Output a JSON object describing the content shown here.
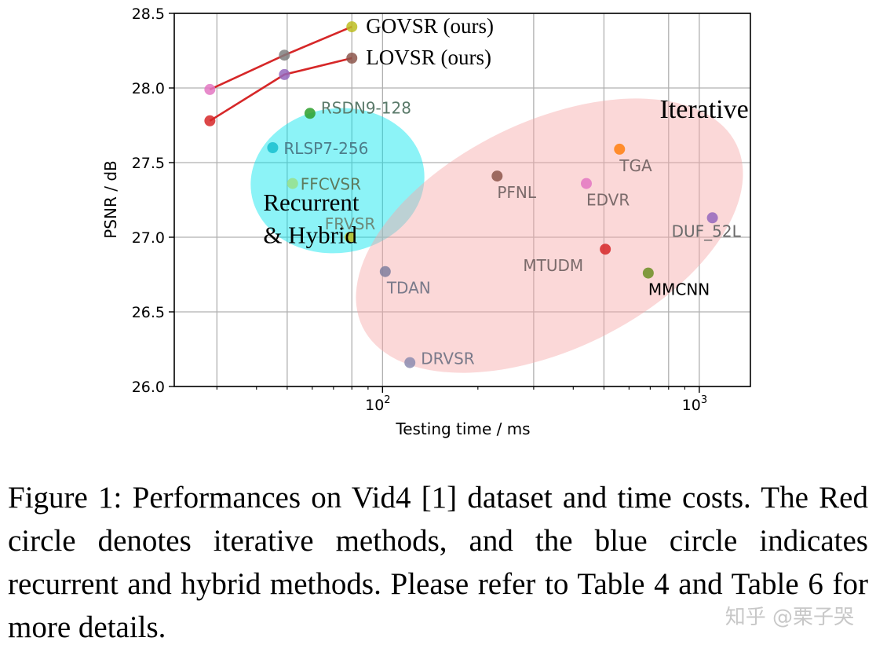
{
  "chart_data": {
    "type": "scatter",
    "xlabel": "Testing time / ms",
    "ylabel": "PSNR / dB",
    "xscale": "log",
    "xlim": [
      22,
      1450
    ],
    "ylim": [
      26.0,
      28.5
    ],
    "yticks": [
      "26.0",
      "26.5",
      "27.0",
      "27.5",
      "28.0",
      "28.5"
    ],
    "xticks": [
      {
        "base": "10",
        "exp": "2",
        "value": 100
      },
      {
        "base": "10",
        "exp": "3",
        "value": 1000
      }
    ],
    "grid": true,
    "points": [
      {
        "label": "GOVSR (ours)",
        "x": 80,
        "y": 28.41,
        "color": "#bcbd22",
        "label_style": "serif"
      },
      {
        "label": "LOVSR (ours)",
        "x": 80,
        "y": 28.2,
        "color": "#8c564b",
        "label_style": "serif"
      },
      {
        "label": "",
        "x": 28.5,
        "y": 27.99,
        "color": "#e377c2"
      },
      {
        "label": "",
        "x": 49,
        "y": 28.22,
        "color": "#7f7f7f"
      },
      {
        "label": "",
        "x": 28.5,
        "y": 27.78,
        "color": "#d62728"
      },
      {
        "label": "",
        "x": 49,
        "y": 28.09,
        "color": "#9467bd"
      },
      {
        "label": "RSDN9-128",
        "x": 59,
        "y": 27.83,
        "color": "#2ca02c"
      },
      {
        "label": "RLSP7-256",
        "x": 45,
        "y": 27.6,
        "color": "#17becf"
      },
      {
        "label": "FFCVSR",
        "x": 52,
        "y": 27.36,
        "color": "#98df8a"
      },
      {
        "label": "FRVSR",
        "x": 79,
        "y": 27.0,
        "color": "#bcbd22"
      },
      {
        "label": "TDAN",
        "x": 102,
        "y": 26.77,
        "color": "#7f7f9f"
      },
      {
        "label": "DRVSR",
        "x": 122,
        "y": 26.16,
        "color": "#8c8cb0"
      },
      {
        "label": "PFNL",
        "x": 230,
        "y": 27.41,
        "color": "#8c564b"
      },
      {
        "label": "EDVR",
        "x": 440,
        "y": 27.36,
        "color": "#e377c2"
      },
      {
        "label": "TGA",
        "x": 560,
        "y": 27.59,
        "color": "#ff7f0e"
      },
      {
        "label": "MTUDM",
        "x": 505,
        "y": 26.92,
        "color": "#d62728"
      },
      {
        "label": "MMCNN",
        "x": 690,
        "y": 26.76,
        "color": "#6b8e23"
      },
      {
        "label": "DUF_52L",
        "x": 1100,
        "y": 27.13,
        "color": "#9467bd"
      }
    ],
    "lines": [
      {
        "name": "GOVSR (ours)",
        "color": "#d62728",
        "points": [
          [
            28.5,
            27.99
          ],
          [
            49,
            28.22
          ],
          [
            80,
            28.41
          ]
        ]
      },
      {
        "name": "LOVSR (ours)",
        "color": "#d62728",
        "points": [
          [
            28.5,
            27.78
          ],
          [
            49,
            28.09
          ],
          [
            80,
            28.2
          ]
        ]
      }
    ],
    "annotations": [
      {
        "text": "Iterative",
        "x": 750,
        "y": 27.8
      },
      {
        "text": "Recurrent",
        "x": 42,
        "y": 27.18
      },
      {
        "text": "& Hybrid",
        "x": 42,
        "y": 26.96
      }
    ],
    "regions": [
      {
        "kind": "ellipse",
        "color": "#00e5ee",
        "opacity": 0.45,
        "label": "Recurrent & Hybrid"
      },
      {
        "kind": "ellipse",
        "color": "#f7a8a8",
        "opacity": 0.45,
        "label": "Iterative"
      }
    ]
  },
  "caption": "Figure 1: Performances on Vid4 [1] dataset and time costs. The Red circle denotes iterative methods, and the blue circle indicates recurrent and hybrid methods. Please refer to Table 4 and Table 6 for more details.",
  "watermark": "知乎 @栗子哭"
}
